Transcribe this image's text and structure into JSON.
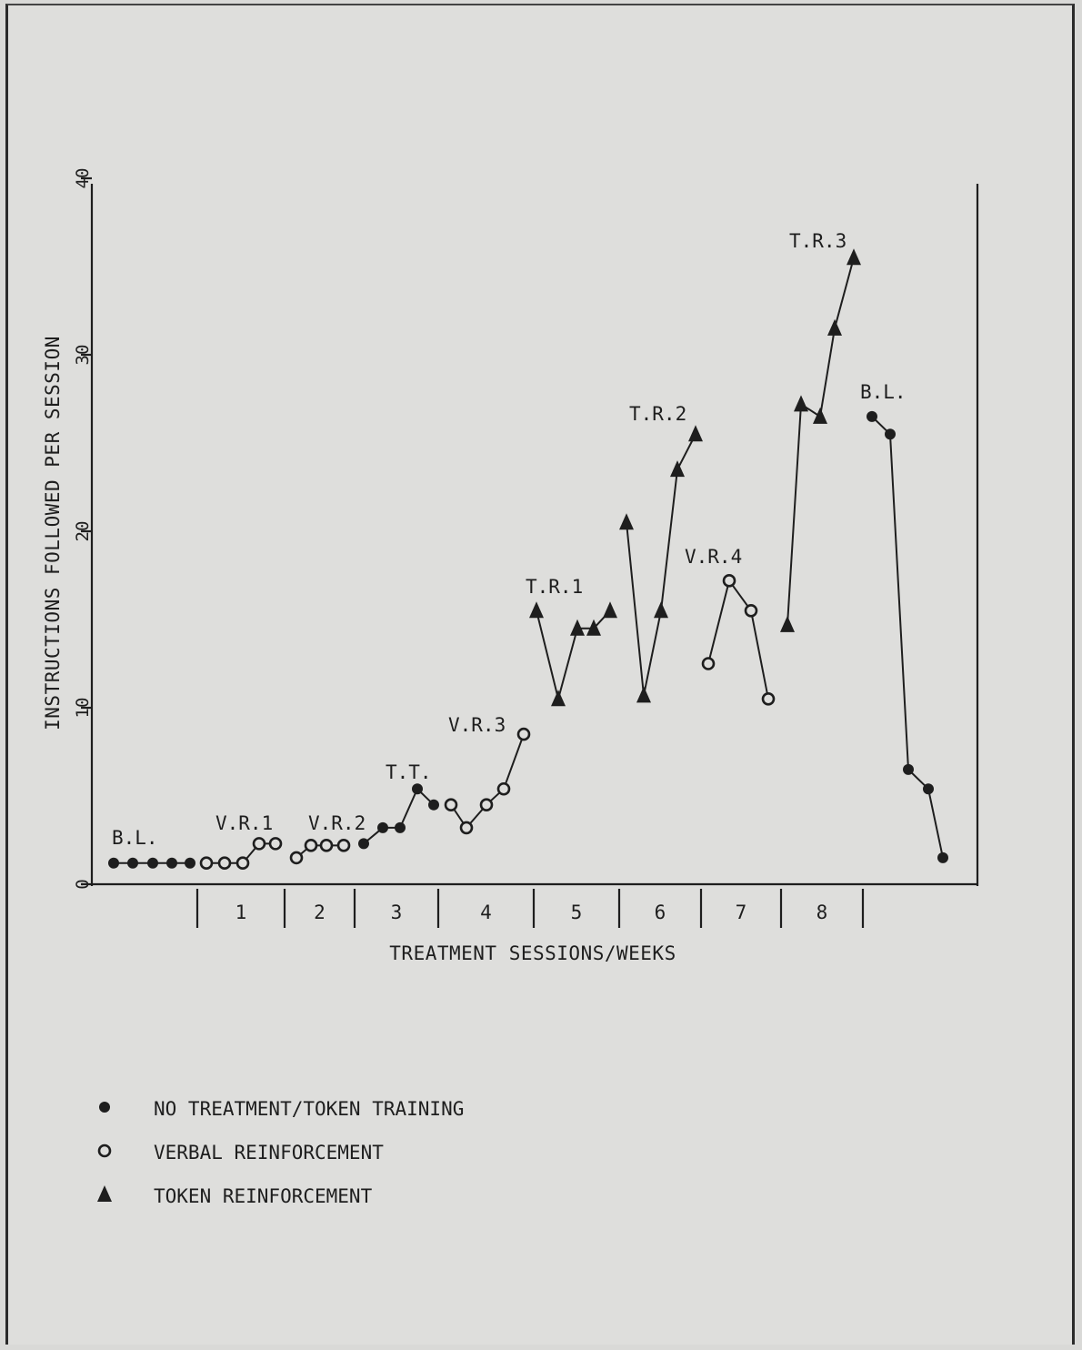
{
  "chart_data": {
    "type": "line",
    "xlabel": "TREATMENT SESSIONS/WEEKS",
    "ylabel": "INSTRUCTIONS FOLLOWED PER SESSION",
    "ylim": [
      0,
      40
    ],
    "yticks": [
      0,
      10,
      20,
      30,
      40
    ],
    "grid": false,
    "weeks": [
      "1",
      "2",
      "3",
      "4",
      "5",
      "6",
      "7",
      "8"
    ],
    "markers": {
      "no_treatment": "filled-circle",
      "verbal": "open-circle",
      "token": "filled-triangle"
    },
    "segments": [
      {
        "marker": "no_treatment",
        "session": [
          1,
          2,
          3,
          4,
          5
        ],
        "values": [
          1.2,
          1.2,
          1.2,
          1.2,
          1.2
        ]
      },
      {
        "marker": "verbal",
        "session": [
          6,
          7,
          8,
          9,
          10
        ],
        "values": [
          1.2,
          1.2,
          1.2,
          2.3,
          2.3
        ]
      },
      {
        "marker": "verbal",
        "session": [
          11,
          12,
          13,
          14
        ],
        "values": [
          1.5,
          2.2,
          2.2,
          2.2
        ]
      },
      {
        "marker": "no_treatment",
        "session": [
          15,
          16,
          17,
          18,
          19
        ],
        "values": [
          2.3,
          3.2,
          3.2,
          5.4,
          4.5
        ]
      },
      {
        "marker": "verbal",
        "session": [
          20,
          21,
          22,
          23,
          24
        ],
        "values": [
          4.5,
          3.2,
          4.5,
          5.4,
          8.5
        ]
      },
      {
        "marker": "token",
        "session": [
          25,
          26,
          27,
          28,
          29
        ],
        "values": [
          15.5,
          10.5,
          14.5,
          14.5,
          15.5
        ]
      },
      {
        "marker": "token",
        "session": [
          30,
          31,
          32,
          33,
          34
        ],
        "values": [
          20.5,
          10.7,
          15.5,
          23.5,
          25.5
        ]
      },
      {
        "marker": "verbal",
        "session": [
          35,
          36,
          37,
          38
        ],
        "values": [
          12.5,
          17.2,
          15.5,
          10.5
        ]
      },
      {
        "marker": "token",
        "session": [
          39,
          40,
          41,
          42,
          43
        ],
        "values": [
          14.7,
          27.2,
          26.5,
          31.5,
          35.5
        ]
      },
      {
        "marker": "no_treatment",
        "session": [
          44,
          45,
          46,
          47,
          48
        ],
        "values": [
          26.5,
          25.5,
          6.5,
          5.4,
          1.5
        ]
      }
    ],
    "phase_labels": [
      "B.L.",
      "V.R.1",
      "V.R.2",
      "T.T.",
      "V.R.3",
      "T.R.1",
      "T.R.2",
      "V.R.4",
      "T.R.3",
      "B.L."
    ],
    "legend": [
      {
        "marker": "no_treatment",
        "label": "NO TREATMENT/TOKEN TRAINING"
      },
      {
        "marker": "verbal",
        "label": "VERBAL REINFORCEMENT"
      },
      {
        "marker": "token",
        "label": "TOKEN REINFORCEMENT"
      }
    ],
    "legend_position": "bottom-left"
  },
  "colors": {
    "ink": "#1e1e1e",
    "paper": "#dededc"
  }
}
